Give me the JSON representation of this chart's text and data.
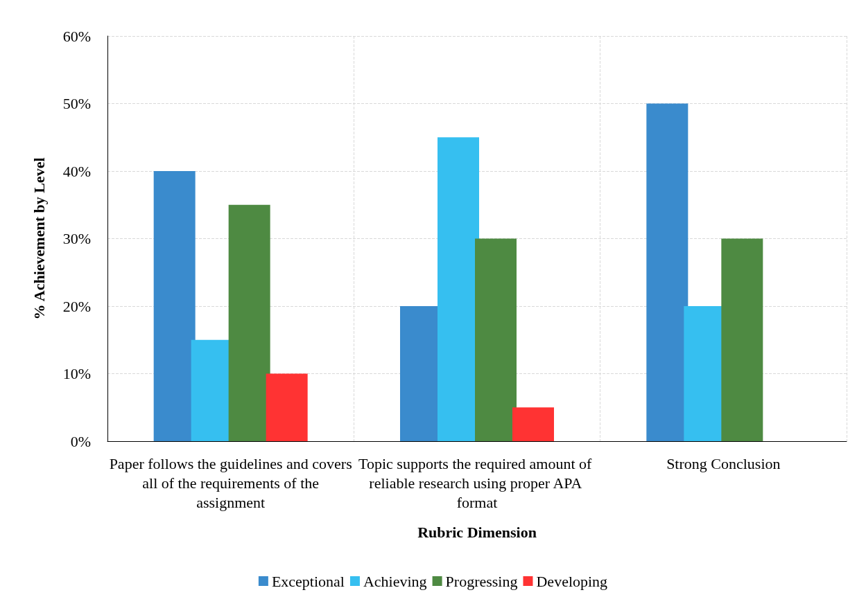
{
  "chart_data": {
    "type": "bar",
    "xlabel": "Rubric Dimension",
    "ylabel": "% Achievement by Level",
    "categories": [
      "Paper follows the guidelines and covers all of the requirements of the assignment",
      "Topic supports the required amount of reliable research using proper APA format",
      "Strong Conclusion"
    ],
    "series": [
      {
        "name": "Exceptional",
        "color": "#3a8bcd",
        "values": [
          40,
          20,
          50
        ]
      },
      {
        "name": "Achieving",
        "color": "#36bff0",
        "values": [
          15,
          45,
          20
        ]
      },
      {
        "name": "Progressing",
        "color": "#4e8a42",
        "values": [
          35,
          30,
          30
        ]
      },
      {
        "name": "Developing",
        "color": "#ff3333",
        "values": [
          10,
          5,
          0
        ]
      }
    ],
    "ylim": [
      0,
      60
    ],
    "yticks": [
      {
        "value": 0,
        "label": "0%"
      },
      {
        "value": 10,
        "label": "10%"
      },
      {
        "value": 20,
        "label": "20%"
      },
      {
        "value": 30,
        "label": "30%"
      },
      {
        "value": 40,
        "label": "40%"
      },
      {
        "value": 50,
        "label": "50%"
      },
      {
        "value": 60,
        "label": "60%"
      }
    ],
    "grid": true,
    "legend": "bottom"
  }
}
